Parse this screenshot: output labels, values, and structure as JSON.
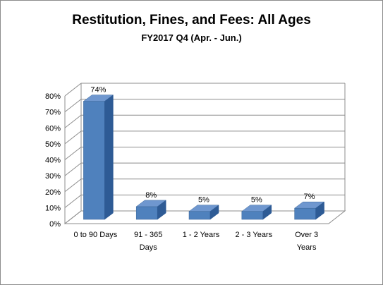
{
  "chart_data": {
    "type": "bar",
    "title": "Restitution,  Fines, and Fees: All Ages",
    "subtitle": "FY2017 Q4 (Apr. - Jun.)",
    "categories": [
      "0 to 90 Days",
      "91 - 365 Days",
      "1 - 2 Years",
      "2 - 3 Years",
      "Over 3 Years"
    ],
    "category_lines": [
      [
        "0 to 90 Days"
      ],
      [
        "91 - 365",
        "Days"
      ],
      [
        "1 - 2 Years"
      ],
      [
        "2 - 3 Years"
      ],
      [
        "Over 3",
        "Years"
      ]
    ],
    "values": [
      74,
      8,
      5,
      5,
      7
    ],
    "data_labels": [
      "74%",
      "8%",
      "5%",
      "5%",
      "7%"
    ],
    "yticks": [
      "0%",
      "10%",
      "20%",
      "30%",
      "40%",
      "50%",
      "60%",
      "70%",
      "80%"
    ],
    "ylim": [
      0,
      80
    ],
    "grid": true,
    "legend": "none",
    "bar_color": "#4f81bd"
  }
}
